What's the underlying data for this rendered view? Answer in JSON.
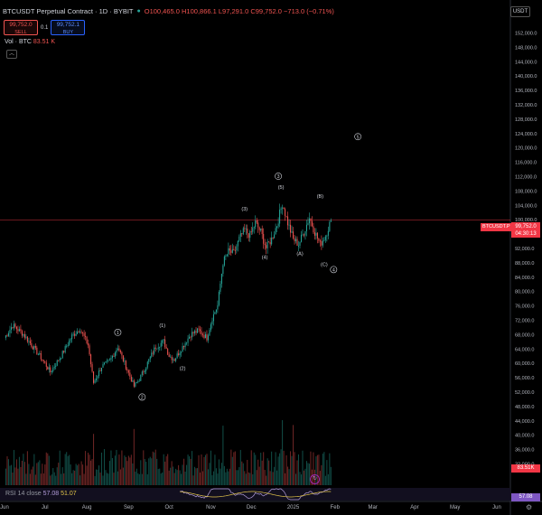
{
  "header": {
    "symbol": "BTCUSDT Perpetual Contract · 1D · BYBIT",
    "ohlc": "O100,465.0 H100,866.1 L97,291.0 C99,752.0 −713.0 (−0.71%)",
    "status_color": "#26a69a"
  },
  "trade": {
    "sell_price": "99,752.0",
    "sell_label": "SELL",
    "spread": "0.1",
    "buy_price": "99,752.1",
    "buy_label": "BUY"
  },
  "volume_legend": {
    "label": "Vol · BTC",
    "value": "83.51 K"
  },
  "currency": "USDT",
  "price_axis_labels": [
    "152,000.0",
    "148,000.0",
    "144,000.0",
    "140,000.0",
    "136,000.0",
    "132,000.0",
    "128,000.0",
    "124,000.0",
    "120,000.0",
    "116,000.0",
    "112,000.0",
    "108,000.0",
    "104,000.0",
    "100,000.0",
    "96,000.0",
    "92,000.0",
    "88,000.0",
    "84,000.0",
    "80,000.0",
    "76,000.0",
    "72,000.0",
    "68,000.0",
    "64,000.0",
    "60,000.0",
    "56,000.0",
    "52,000.0",
    "48,000.0",
    "44,000.0",
    "40,000.0",
    "36,000.0",
    "32,000.0"
  ],
  "time_axis_labels": [
    "Jun",
    "Jul",
    "Aug",
    "Sep",
    "Oct",
    "Nov",
    "Dec",
    "2025",
    "Feb",
    "Mar",
    "Apr",
    "May",
    "Jun"
  ],
  "last_price": {
    "ticker": "BTCUSDT.P",
    "price": "99,752.0",
    "countdown": "04:30:13"
  },
  "volume_tag": "83.51K",
  "rsi": {
    "label": "RSI 14 close",
    "value1": "57.08",
    "value2": "51.07",
    "tag": "57.08"
  },
  "colors": {
    "up": "#26a69a",
    "down": "#ef5350",
    "price_line": "#f23645",
    "rsi": "#b39ddb",
    "rsi_ma": "#e0c34a"
  },
  "wave_labels": [
    "1",
    "(1)",
    "(2)",
    "2",
    "(3)",
    "(4)",
    "(5)",
    "3",
    "(A)",
    "(B)",
    "(C)",
    "4",
    "5"
  ],
  "icons": {
    "settings": "gear-icon",
    "collapse": "chevron-up-icon",
    "goto": "goto-realtime-icon"
  },
  "chart_data": {
    "type": "candlestick",
    "symbol": "BTCUSDT",
    "interval": "1D",
    "ylim": [
      30000,
      154000
    ],
    "x_range": [
      "Jun",
      "Jun"
    ],
    "anchors": [
      {
        "d": 0,
        "p": 67000
      },
      {
        "d": 6,
        "p": 70500
      },
      {
        "d": 14,
        "p": 68000
      },
      {
        "d": 22,
        "p": 64000
      },
      {
        "d": 28,
        "p": 61000
      },
      {
        "d": 34,
        "p": 57500
      },
      {
        "d": 42,
        "p": 62000
      },
      {
        "d": 50,
        "p": 67500
      },
      {
        "d": 56,
        "p": 69500
      },
      {
        "d": 62,
        "p": 65000
      },
      {
        "d": 66,
        "p": 54500
      },
      {
        "d": 72,
        "p": 59000
      },
      {
        "d": 78,
        "p": 60500
      },
      {
        "d": 84,
        "p": 64500
      },
      {
        "d": 90,
        "p": 59000
      },
      {
        "d": 96,
        "p": 53500
      },
      {
        "d": 100,
        "p": 55500
      },
      {
        "d": 106,
        "p": 60000
      },
      {
        "d": 112,
        "p": 64500
      },
      {
        "d": 118,
        "p": 66000
      },
      {
        "d": 122,
        "p": 62000
      },
      {
        "d": 126,
        "p": 61000
      },
      {
        "d": 132,
        "p": 64500
      },
      {
        "d": 138,
        "p": 68000
      },
      {
        "d": 144,
        "p": 69000
      },
      {
        "d": 150,
        "p": 67000
      },
      {
        "d": 154,
        "p": 72500
      },
      {
        "d": 158,
        "p": 76000
      },
      {
        "d": 162,
        "p": 88000
      },
      {
        "d": 166,
        "p": 91000
      },
      {
        "d": 170,
        "p": 90500
      },
      {
        "d": 174,
        "p": 94500
      },
      {
        "d": 178,
        "p": 97000
      },
      {
        "d": 182,
        "p": 95500
      },
      {
        "d": 186,
        "p": 99000
      },
      {
        "d": 190,
        "p": 96500
      },
      {
        "d": 194,
        "p": 92000
      },
      {
        "d": 198,
        "p": 94500
      },
      {
        "d": 202,
        "p": 98500
      },
      {
        "d": 206,
        "p": 104500
      },
      {
        "d": 210,
        "p": 99000
      },
      {
        "d": 214,
        "p": 94500
      },
      {
        "d": 218,
        "p": 93000
      },
      {
        "d": 222,
        "p": 96500
      },
      {
        "d": 226,
        "p": 100500
      },
      {
        "d": 230,
        "p": 96500
      },
      {
        "d": 234,
        "p": 93000
      },
      {
        "d": 238,
        "p": 95500
      },
      {
        "d": 242,
        "p": 99752
      }
    ],
    "wave_positions": [
      {
        "label": "1",
        "d": 84,
        "p": 68000
      },
      {
        "label": "(1)",
        "d": 117,
        "p": 70000
      },
      {
        "label": "(2)",
        "d": 132,
        "p": 58000
      },
      {
        "label": "2",
        "d": 102,
        "p": 50000
      },
      {
        "label": "(3)",
        "d": 178,
        "p": 102500
      },
      {
        "label": "(4)",
        "d": 193,
        "p": 89000
      },
      {
        "label": "(5)",
        "d": 205,
        "p": 108500
      },
      {
        "label": "3",
        "d": 203,
        "p": 111500
      },
      {
        "label": "(A)",
        "d": 219,
        "p": 90000
      },
      {
        "label": "(B)",
        "d": 234,
        "p": 106000
      },
      {
        "label": "(C)",
        "d": 237,
        "p": 87000
      },
      {
        "label": "4",
        "d": 244,
        "p": 85500
      },
      {
        "label": "5",
        "d": 262,
        "p": 122500
      }
    ]
  }
}
